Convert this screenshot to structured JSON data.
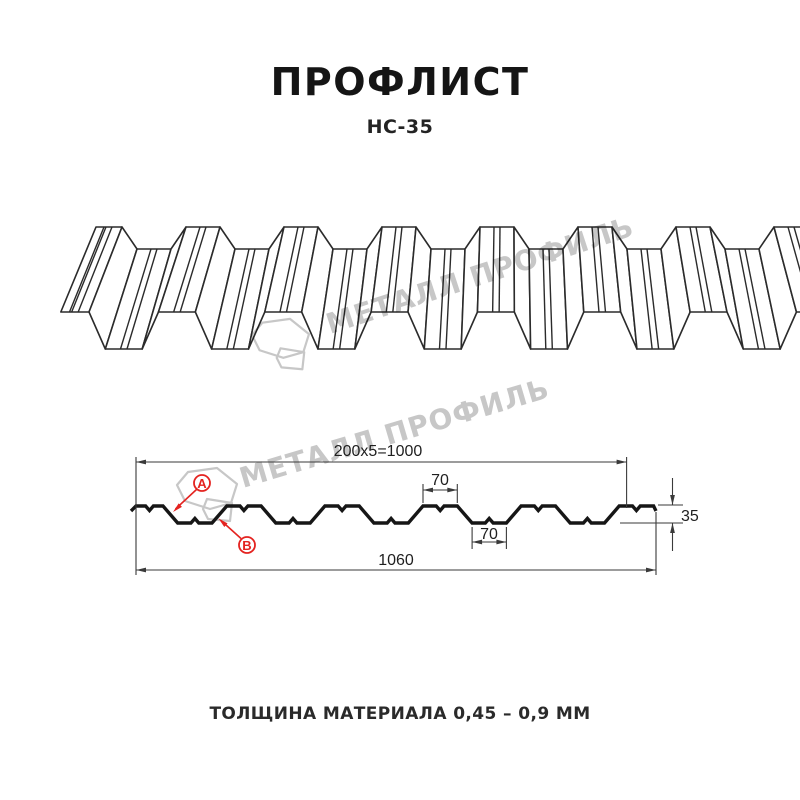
{
  "title": "ПРОФЛИСТ",
  "subtitle": "НС-35",
  "watermark": {
    "text": "МЕТАЛЛ ПРОФИЛЬ"
  },
  "cross_section": {
    "dim_top": "200x5=1000",
    "dim_crest_width": "70",
    "dim_valley_width": "70",
    "dim_height": "35",
    "dim_overall_width": "1060",
    "label_a": "А",
    "label_b": "В"
  },
  "footer": {
    "thickness": "ТОЛЩИНА МАТЕРИАЛА 0,45 – 0,9 ММ"
  },
  "colors": {
    "accent_red": "#e42320",
    "profile_line": "#161616",
    "dim_line": "#3a3a3a",
    "sheet_line": "#2b2b2b",
    "watermark": "#c7c7c7"
  }
}
